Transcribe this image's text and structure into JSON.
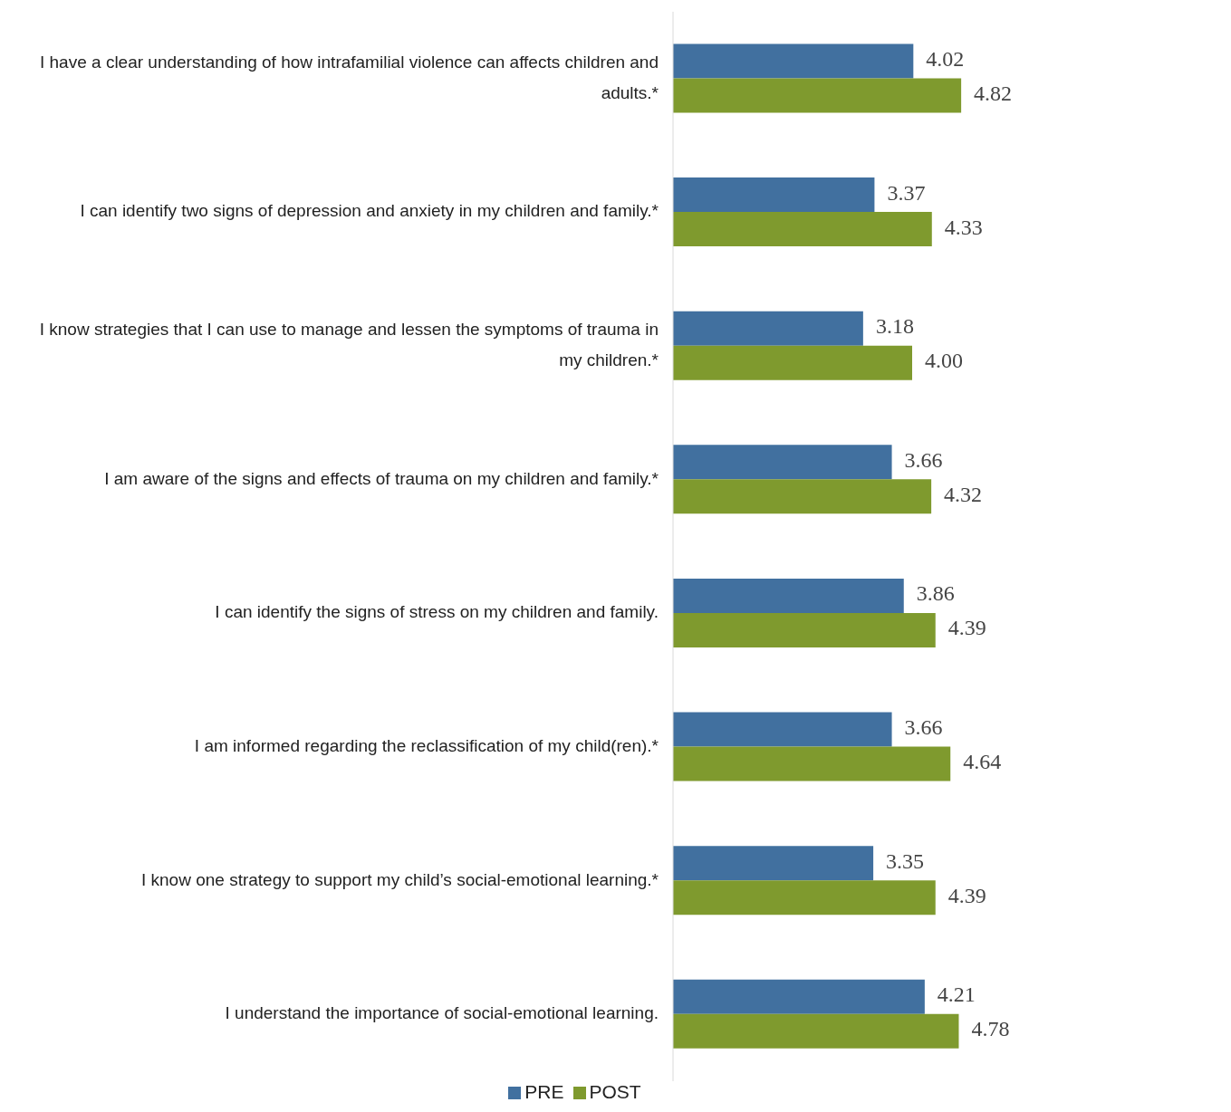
{
  "chart_data": {
    "type": "bar",
    "orientation": "horizontal",
    "categories": [
      "I have a clear understanding of how intrafamilial violence can affects children and adults.*",
      "I can identify two signs of depression and anxiety in my children and family.*",
      "I know strategies that I can use to manage and lessen the symptoms of trauma in my children.*",
      "I am aware of the signs and effects of trauma on my children and family.*",
      "I can identify the signs of stress on my children and family.",
      "I am informed regarding the reclassification of my child(ren).*",
      "I know one strategy to support my child’s social-emotional learning.*",
      "I understand the importance of social-emotional learning."
    ],
    "series": [
      {
        "name": "PRE",
        "color": "#41709f",
        "values": [
          4.02,
          3.37,
          3.18,
          3.66,
          3.86,
          3.66,
          3.35,
          4.21
        ],
        "value_labels": [
          "4.02",
          "3.37",
          "3.18",
          "3.66",
          "3.86",
          "3.66",
          "3.35",
          "4.21"
        ]
      },
      {
        "name": "POST",
        "color": "#7f9a2e",
        "values": [
          4.82,
          4.33,
          4.0,
          4.32,
          4.39,
          4.64,
          4.39,
          4.78
        ],
        "value_labels": [
          "4.82",
          "4.33",
          "4.00",
          "4.32",
          "4.39",
          "4.64",
          "4.39",
          "4.78"
        ]
      }
    ],
    "tick_labels": "y",
    "grid": false,
    "legend": "bottom"
  }
}
